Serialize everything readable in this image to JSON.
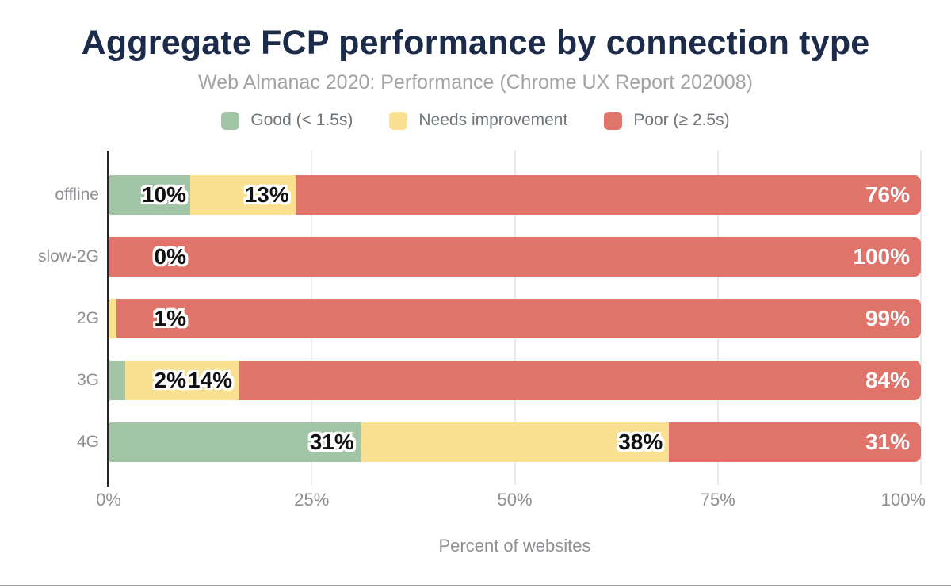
{
  "figure": {
    "title": "Aggregate FCP performance by connection type",
    "subtitle": "Web Almanac 2020: Performance (Chrome UX Report 202008)"
  },
  "legend": {
    "items": [
      {
        "label": "Good (< 1.5s)",
        "color": "#a2c5a7"
      },
      {
        "label": "Needs improvement",
        "color": "#fae191"
      },
      {
        "label": "Poor (≥ 2.5s)",
        "color": "#e0746a"
      }
    ]
  },
  "chart_data": {
    "type": "bar",
    "orientation": "horizontal",
    "stacked": true,
    "title": "Aggregate FCP performance by connection type",
    "subtitle": "Web Almanac 2020: Performance (Chrome UX Report 202008)",
    "xlabel": "Percent of websites",
    "ylabel": "",
    "xlim": [
      0,
      100
    ],
    "x_ticks": [
      "0%",
      "25%",
      "50%",
      "75%",
      "100%"
    ],
    "grid": true,
    "legend_position": "top",
    "categories": [
      "offline",
      "slow-2G",
      "2G",
      "3G",
      "4G"
    ],
    "series": [
      {
        "name": "Good (< 1.5s)",
        "color": "#a2c5a7",
        "values": [
          10,
          0,
          0,
          2,
          31
        ]
      },
      {
        "name": "Needs improvement",
        "color": "#fae191",
        "values": [
          13,
          0,
          1,
          14,
          38
        ]
      },
      {
        "name": "Poor (≥ 2.5s)",
        "color": "#e0746a",
        "values": [
          76,
          100,
          99,
          84,
          31
        ]
      }
    ],
    "segment_labels": [
      [
        {
          "series": 0,
          "text": "10%"
        },
        {
          "series": 1,
          "text": "13%"
        },
        {
          "series": 2,
          "text": "76%"
        }
      ],
      [
        {
          "series": 0,
          "text": "0%"
        },
        {
          "series": 2,
          "text": "100%"
        }
      ],
      [
        {
          "series": 1,
          "text": "1%"
        },
        {
          "series": 2,
          "text": "99%"
        }
      ],
      [
        {
          "series": 0,
          "text": "2%"
        },
        {
          "series": 1,
          "text": "14%"
        },
        {
          "series": 2,
          "text": "84%"
        }
      ],
      [
        {
          "series": 0,
          "text": "31%"
        },
        {
          "series": 1,
          "text": "38%"
        },
        {
          "series": 2,
          "text": "31%"
        }
      ]
    ]
  },
  "colors": {
    "title_text": "#1c2b4a",
    "subtitle_text": "#a3a3a3",
    "axis_text": "#8d8f93",
    "gridline": "#e9e9e9",
    "axis_line": "#262626",
    "good": "#a2c5a7",
    "needs_improvement": "#fae191",
    "poor": "#e0746a"
  }
}
